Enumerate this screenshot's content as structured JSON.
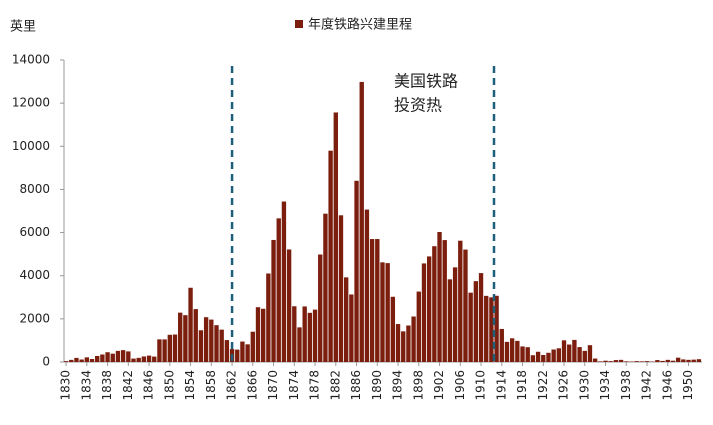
{
  "chart_data": {
    "type": "bar",
    "y_label": "英里",
    "series": [
      {
        "name": "年度铁路兴建里程",
        "color": "#7b1e0e",
        "values": [
          40,
          99,
          191,
          116,
          215,
          138,
          280,
          348,
          453,
          386,
          516,
          550,
          491,
          159,
          192,
          256,
          297,
          250,
          1050,
          1048,
          1261,
          1274,
          2288,
          2170,
          3442,
          2453,
          1471,
          2077,
          1966,
          1707,
          1500,
          1016,
          600,
          574,
          947,
          819,
          1404,
          2541,
          2468,
          4103,
          5658,
          6660,
          7439,
          5217,
          2584,
          1606,
          2575,
          2280,
          2428,
          4983,
          6876,
          9796,
          11568,
          6800,
          3923,
          3131,
          8400,
          12983,
          7066,
          5700,
          5700,
          4620,
          4584,
          3024,
          1760,
          1420,
          1692,
          2109,
          3265,
          4569,
          4894,
          5368,
          6026,
          5652,
          3832,
          4388,
          5623,
          5212,
          3214,
          3748,
          4122,
          3066,
          2997,
          3071,
          1532,
          933,
          1098,
          979,
          721,
          686,
          314,
          475,
          324,
          427,
          579,
          636,
          1005,
          810,
          1024,
          692,
          515,
          780,
          160,
          30,
          60,
          40,
          90,
          100,
          30,
          20,
          40,
          30,
          40,
          20,
          90,
          50,
          100,
          60,
          200,
          120,
          100,
          110,
          130
        ]
      }
    ],
    "x": [
      1830,
      1831,
      1832,
      1833,
      1834,
      1835,
      1836,
      1837,
      1838,
      1839,
      1840,
      1841,
      1842,
      1843,
      1844,
      1845,
      1846,
      1847,
      1848,
      1849,
      1850,
      1851,
      1852,
      1853,
      1854,
      1855,
      1856,
      1857,
      1858,
      1859,
      1860,
      1861,
      1862,
      1863,
      1864,
      1865,
      1866,
      1867,
      1868,
      1869,
      1870,
      1871,
      1872,
      1873,
      1874,
      1875,
      1876,
      1877,
      1878,
      1879,
      1880,
      1881,
      1882,
      1883,
      1884,
      1885,
      1886,
      1887,
      1888,
      1889,
      1890,
      1891,
      1892,
      1893,
      1894,
      1895,
      1896,
      1897,
      1898,
      1899,
      1900,
      1901,
      1902,
      1903,
      1904,
      1905,
      1906,
      1907,
      1908,
      1909,
      1910,
      1911,
      1912,
      1913,
      1914,
      1915,
      1916,
      1917,
      1918,
      1919,
      1920,
      1921,
      1922,
      1923,
      1924,
      1925,
      1926,
      1927,
      1928,
      1929,
      1930,
      1931,
      1932,
      1933,
      1934,
      1935,
      1936,
      1937,
      1938,
      1939,
      1940,
      1941,
      1942,
      1943,
      1944,
      1945,
      1946,
      1947,
      1948,
      1949,
      1950,
      1951,
      1952
    ],
    "xlim": [
      1829.6,
      1952.6
    ],
    "xticks": [
      1830,
      1834,
      1838,
      1842,
      1846,
      1850,
      1854,
      1858,
      1862,
      1866,
      1870,
      1874,
      1878,
      1882,
      1886,
      1890,
      1894,
      1898,
      1902,
      1906,
      1910,
      1914,
      1918,
      1922,
      1926,
      1930,
      1934,
      1938,
      1942,
      1946,
      1950
    ],
    "ylim": [
      0,
      14000
    ],
    "yticks": [
      0,
      2000,
      4000,
      6000,
      8000,
      10000,
      12000,
      14000
    ],
    "vlines": [
      1862,
      1912.5
    ],
    "vline_color": "#1f5f7a",
    "annotation": [
      "美国铁路",
      "投资热"
    ],
    "legend": "top"
  }
}
